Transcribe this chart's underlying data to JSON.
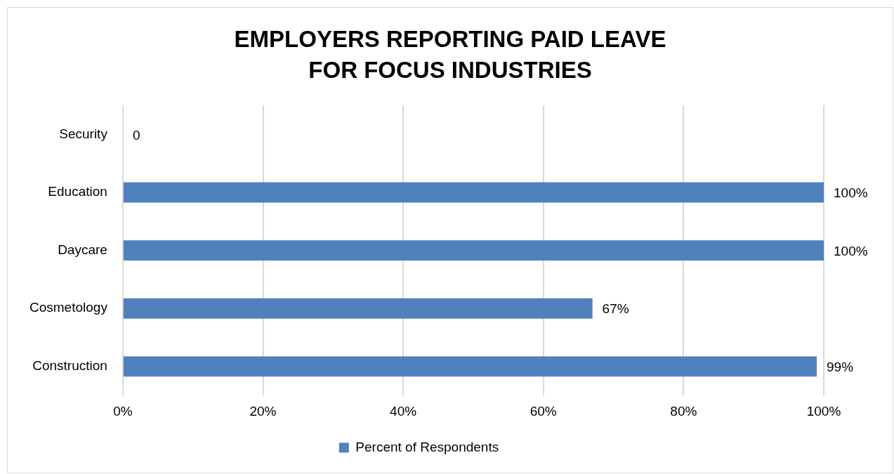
{
  "chart_data": {
    "type": "bar",
    "orientation": "horizontal",
    "title": "EMPLOYERS REPORTING PAID LEAVE FOR FOCUS INDUSTRIES",
    "categories": [
      "Security",
      "Education",
      "Daycare",
      "Cosmetology",
      "Construction"
    ],
    "series": [
      {
        "name": "Percent of Respondents",
        "color": "#4f81bd",
        "values": [
          0,
          100,
          100,
          67,
          99
        ],
        "value_labels": [
          "0",
          "100%",
          "100%",
          "67%",
          "99%"
        ]
      }
    ],
    "xlim": [
      0,
      100
    ],
    "xticks": [
      {
        "value": 0,
        "label": "0%"
      },
      {
        "value": 20,
        "label": "20%"
      },
      {
        "value": 40,
        "label": "40%"
      },
      {
        "value": 60,
        "label": "60%"
      },
      {
        "value": 80,
        "label": "80%"
      },
      {
        "value": 100,
        "label": "100%"
      }
    ],
    "grid": "x",
    "legend": "bottom"
  }
}
